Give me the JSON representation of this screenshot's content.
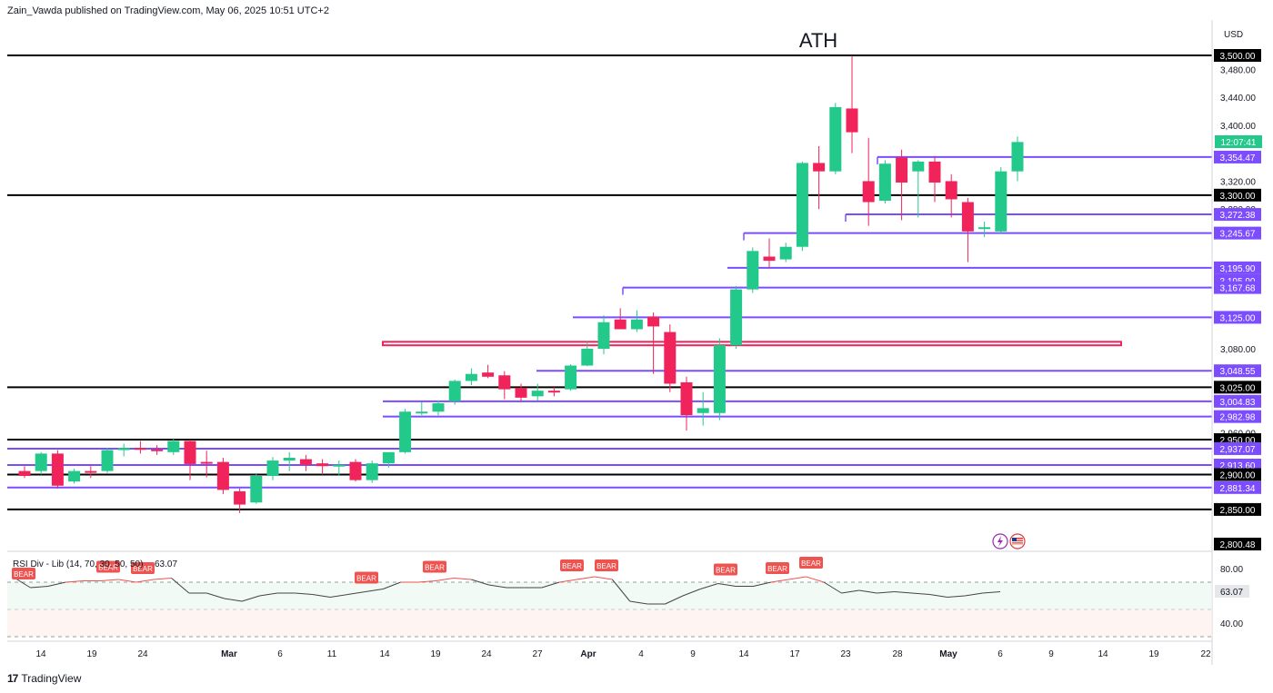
{
  "header": {
    "publisher_line": "Zain_Vawda published on TradingView.com, May 06, 2025 10:51 UTC+2"
  },
  "footer": {
    "brand": "TradingView",
    "logo_glyph": "17"
  },
  "colors": {
    "bull": "#22c98a",
    "bear": "#f0245a",
    "level_purple": "#7c4dff",
    "level_black": "#000000",
    "zone_pink": "#f0245a",
    "rsi_line_gray": "#444444",
    "rsi_line_red": "#ef5350",
    "rsi_bear_label": "#ef5350",
    "grid": "#e6e9ef",
    "countdown_bg": "#22c98a"
  },
  "chart_data": [
    {
      "type": "candlestick",
      "title": "",
      "annotation": "ATH",
      "currency": "USD",
      "countdown": "12:07:41",
      "yaxis_ticks": [
        "3,480.00",
        "3,440.00",
        "3,400.00",
        "3,320.00",
        "3,280.00",
        "3,080.00",
        "2,960.00"
      ],
      "yaxis_tick_values": [
        3480,
        3440,
        3400,
        3320,
        3280,
        3080,
        2960
      ],
      "ylim": [
        2795,
        3508
      ],
      "xaxis_ticks": [
        "14",
        "19",
        "24",
        "Mar",
        "6",
        "11",
        "14",
        "19",
        "24",
        "27",
        "Apr",
        "4",
        "9",
        "14",
        "17",
        "23",
        "28",
        "May",
        "6",
        "9",
        "14",
        "19",
        "22"
      ],
      "xaxis_bold": [
        "Mar",
        "Apr",
        "May"
      ],
      "horizontal_levels": [
        {
          "label": "3,500.00",
          "value": 3500,
          "style": "black"
        },
        {
          "label": "3,354.47",
          "value": 3354.47,
          "style": "purple"
        },
        {
          "label": "3,300.00",
          "value": 3300,
          "style": "black"
        },
        {
          "label": "3,272.38",
          "value": 3272.38,
          "style": "purple"
        },
        {
          "label": "3,245.67",
          "value": 3245.67,
          "style": "purple"
        },
        {
          "label": "3,195.90",
          "value": 3195.9,
          "style": "purple"
        },
        {
          "label": "3,195.90",
          "value": 3195.9,
          "style": "purple"
        },
        {
          "label": "3,167.68",
          "value": 3167.68,
          "style": "purple"
        },
        {
          "label": "3,125.00",
          "value": 3125,
          "style": "purple"
        },
        {
          "label": "3,048.55",
          "value": 3048.55,
          "style": "purple"
        },
        {
          "label": "3,025.00",
          "value": 3025,
          "style": "black"
        },
        {
          "label": "3,004.83",
          "value": 3004.83,
          "style": "purple"
        },
        {
          "label": "2,982.98",
          "value": 2982.98,
          "style": "purple"
        },
        {
          "label": "2,950.00",
          "value": 2950,
          "style": "black"
        },
        {
          "label": "2,937.07",
          "value": 2937.07,
          "style": "purple"
        },
        {
          "label": "2,913.60",
          "value": 2913.6,
          "style": "purple"
        },
        {
          "label": "2,900.00",
          "value": 2900,
          "style": "black"
        },
        {
          "label": "2,881.34",
          "value": 2881.34,
          "style": "purple"
        },
        {
          "label": "2,850.00",
          "value": 2850,
          "style": "black"
        },
        {
          "label": "2,800.48",
          "value": 2800.48,
          "style": "black"
        }
      ],
      "zone": {
        "from": 3085,
        "to": 3090
      },
      "candles": [
        {
          "o": 2905,
          "h": 2912,
          "l": 2895,
          "c": 2898
        },
        {
          "o": 2905,
          "h": 2932,
          "l": 2900,
          "c": 2930
        },
        {
          "o": 2930,
          "h": 2935,
          "l": 2880,
          "c": 2884
        },
        {
          "o": 2890,
          "h": 2908,
          "l": 2887,
          "c": 2905
        },
        {
          "o": 2905,
          "h": 2912,
          "l": 2895,
          "c": 2903
        },
        {
          "o": 2905,
          "h": 2938,
          "l": 2902,
          "c": 2935
        },
        {
          "o": 2935,
          "h": 2944,
          "l": 2926,
          "c": 2938
        },
        {
          "o": 2938,
          "h": 2948,
          "l": 2930,
          "c": 2936
        },
        {
          "o": 2936,
          "h": 2942,
          "l": 2928,
          "c": 2935
        },
        {
          "o": 2932,
          "h": 2952,
          "l": 2928,
          "c": 2948
        },
        {
          "o": 2948,
          "h": 2950,
          "l": 2892,
          "c": 2915
        },
        {
          "o": 2918,
          "h": 2934,
          "l": 2896,
          "c": 2916
        },
        {
          "o": 2918,
          "h": 2924,
          "l": 2872,
          "c": 2878
        },
        {
          "o": 2876,
          "h": 2880,
          "l": 2845,
          "c": 2857
        },
        {
          "o": 2860,
          "h": 2902,
          "l": 2858,
          "c": 2898
        },
        {
          "o": 2898,
          "h": 2925,
          "l": 2892,
          "c": 2920
        },
        {
          "o": 2920,
          "h": 2932,
          "l": 2905,
          "c": 2924
        },
        {
          "o": 2922,
          "h": 2928,
          "l": 2905,
          "c": 2914
        },
        {
          "o": 2916,
          "h": 2922,
          "l": 2900,
          "c": 2912
        },
        {
          "o": 2912,
          "h": 2920,
          "l": 2898,
          "c": 2914
        },
        {
          "o": 2918,
          "h": 2922,
          "l": 2890,
          "c": 2892
        },
        {
          "o": 2892,
          "h": 2920,
          "l": 2888,
          "c": 2916
        },
        {
          "o": 2916,
          "h": 2932,
          "l": 2910,
          "c": 2932
        },
        {
          "o": 2932,
          "h": 2994,
          "l": 2930,
          "c": 2990
        },
        {
          "o": 2990,
          "h": 3004,
          "l": 2985,
          "c": 2990
        },
        {
          "o": 2990,
          "h": 3006,
          "l": 2985,
          "c": 3002
        },
        {
          "o": 3005,
          "h": 3036,
          "l": 3000,
          "c": 3034
        },
        {
          "o": 3034,
          "h": 3052,
          "l": 3028,
          "c": 3044
        },
        {
          "o": 3046,
          "h": 3057,
          "l": 3038,
          "c": 3040
        },
        {
          "o": 3042,
          "h": 3048,
          "l": 3008,
          "c": 3022
        },
        {
          "o": 3024,
          "h": 3030,
          "l": 3004,
          "c": 3010
        },
        {
          "o": 3012,
          "h": 3030,
          "l": 3006,
          "c": 3020
        },
        {
          "o": 3020,
          "h": 3025,
          "l": 3012,
          "c": 3018
        },
        {
          "o": 3022,
          "h": 3058,
          "l": 3020,
          "c": 3056
        },
        {
          "o": 3056,
          "h": 3090,
          "l": 3055,
          "c": 3080
        },
        {
          "o": 3080,
          "h": 3128,
          "l": 3072,
          "c": 3118
        },
        {
          "o": 3122,
          "h": 3138,
          "l": 3108,
          "c": 3108
        },
        {
          "o": 3108,
          "h": 3135,
          "l": 3104,
          "c": 3122
        },
        {
          "o": 3126,
          "h": 3132,
          "l": 3044,
          "c": 3112
        },
        {
          "o": 3104,
          "h": 3115,
          "l": 3018,
          "c": 3030
        },
        {
          "o": 3032,
          "h": 3040,
          "l": 2963,
          "c": 2985
        },
        {
          "o": 2988,
          "h": 3018,
          "l": 2970,
          "c": 2995
        },
        {
          "o": 2988,
          "h": 3095,
          "l": 2978,
          "c": 3085
        },
        {
          "o": 3085,
          "h": 3170,
          "l": 3080,
          "c": 3165
        },
        {
          "o": 3165,
          "h": 3225,
          "l": 3160,
          "c": 3220
        },
        {
          "o": 3212,
          "h": 3238,
          "l": 3196,
          "c": 3206
        },
        {
          "o": 3208,
          "h": 3232,
          "l": 3204,
          "c": 3226
        },
        {
          "o": 3226,
          "h": 3348,
          "l": 3220,
          "c": 3346
        },
        {
          "o": 3346,
          "h": 3370,
          "l": 3280,
          "c": 3334
        },
        {
          "o": 3334,
          "h": 3432,
          "l": 3330,
          "c": 3426
        },
        {
          "o": 3424,
          "h": 3500,
          "l": 3360,
          "c": 3390
        },
        {
          "o": 3320,
          "h": 3382,
          "l": 3256,
          "c": 3290
        },
        {
          "o": 3292,
          "h": 3350,
          "l": 3288,
          "c": 3345
        },
        {
          "o": 3354,
          "h": 3365,
          "l": 3264,
          "c": 3318
        },
        {
          "o": 3334,
          "h": 3350,
          "l": 3268,
          "c": 3348
        },
        {
          "o": 3348,
          "h": 3356,
          "l": 3290,
          "c": 3318
        },
        {
          "o": 3320,
          "h": 3330,
          "l": 3268,
          "c": 3294
        },
        {
          "o": 3290,
          "h": 3296,
          "l": 3204,
          "c": 3248
        },
        {
          "o": 3252,
          "h": 3262,
          "l": 3240,
          "c": 3254
        },
        {
          "o": 3248,
          "h": 3340,
          "l": 3244,
          "c": 3334
        },
        {
          "o": 3334,
          "h": 3384,
          "l": 3320,
          "c": 3376
        }
      ]
    },
    {
      "type": "line",
      "title": "RSI Div - Lib (14, 70, 30, 50, 50)",
      "last_value": "63.07",
      "yaxis_ticks": [
        "80.00",
        "40.00"
      ],
      "yaxis_tick_values": [
        80,
        40
      ],
      "ylim": [
        27,
        88
      ],
      "overbought": 70,
      "oversold": 30,
      "mid": 50,
      "values": [
        74,
        66,
        67,
        70,
        71,
        71,
        72,
        70,
        72,
        73,
        62,
        62,
        58,
        56,
        60,
        62,
        62,
        61,
        59,
        61,
        63,
        65,
        70,
        70,
        71,
        73,
        72,
        68,
        66,
        66,
        66,
        70,
        72,
        74,
        72,
        56,
        54,
        54,
        60,
        65,
        69,
        67,
        67,
        70,
        72,
        74,
        70,
        62,
        64,
        62,
        63,
        62,
        61,
        59,
        60,
        62,
        63
      ],
      "bear_labels": [
        "BEAR",
        "BEAR",
        "BEAR",
        "BEAR",
        "BEAR",
        "BEAR",
        "BEAR",
        "BEAR",
        "BEAR",
        "BEAR",
        "BEAR"
      ]
    }
  ]
}
